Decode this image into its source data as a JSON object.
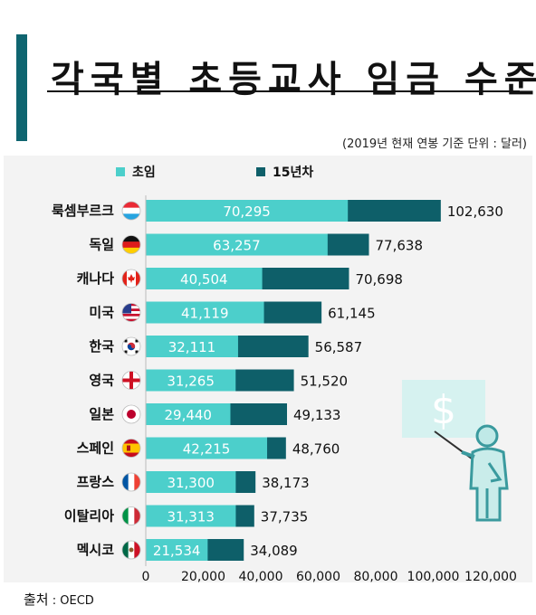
{
  "title": "각국별 초등교사 임금 수준",
  "subtitle": "(2019년 현재 연봉 기준  단위 :  달러)",
  "source": {
    "label": "출처",
    "text": " : OECD"
  },
  "colors": {
    "starting": "#4ccfcb",
    "fifteen_years": "#0e5f69",
    "title_bar": "#0f6570",
    "panel": "#f3f3f3",
    "illustration": "#d6f2f0"
  },
  "chart_data": {
    "type": "bar",
    "orientation": "horizontal",
    "stacked": "overlay",
    "categories": [
      "룩셈부르크",
      "독일",
      "캐나다",
      "미국",
      "한국",
      "영국",
      "일본",
      "스페인",
      "프랑스",
      "이탈리아",
      "멕시코"
    ],
    "flags": [
      "luxembourg-flag",
      "germany-flag",
      "canada-flag",
      "usa-flag",
      "korea-flag",
      "england-flag",
      "japan-flag",
      "spain-flag",
      "france-flag",
      "italy-flag",
      "mexico-flag"
    ],
    "series": [
      {
        "name": "초임",
        "values": [
          70295,
          63257,
          40504,
          41119,
          32111,
          31265,
          29440,
          42215,
          31300,
          31313,
          21534
        ]
      },
      {
        "name": "15년차",
        "values": [
          102630,
          77638,
          70698,
          61145,
          56587,
          51520,
          49133,
          48760,
          38173,
          37735,
          34089
        ]
      }
    ],
    "value_labels_starting": [
      "70,295",
      "63,257",
      "40,504",
      "41,119",
      "32,111",
      "31,265",
      "29,440",
      "42,215",
      "31,300",
      "31,313",
      "21,534"
    ],
    "value_labels_fifteen": [
      "102,630",
      "77,638",
      "70,698",
      "61,145",
      "56,587",
      "51,520",
      "49,133",
      "48,760",
      "38,173",
      "37,735",
      "34,089"
    ],
    "xlim": [
      0,
      120000
    ],
    "xticks": [
      0,
      20000,
      40000,
      60000,
      80000,
      100000,
      120000
    ],
    "xtick_labels": [
      "0",
      "20,000",
      "40,000",
      "60,000",
      "80,000",
      "100,000",
      "120,000"
    ],
    "legend_placement": "top-left",
    "grid": false
  }
}
